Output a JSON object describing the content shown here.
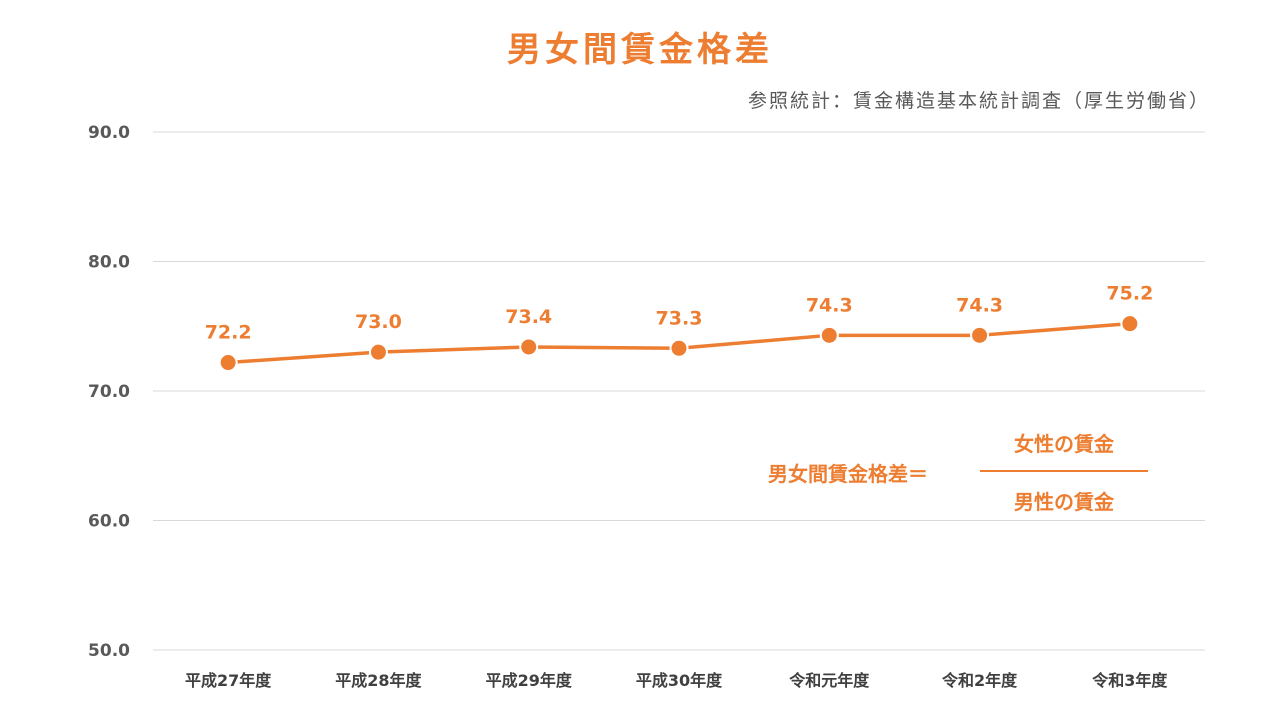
{
  "header": {
    "title": "男女間賃金格差",
    "source": "参照統計：賃金構造基本統計調査（厚生労働省）"
  },
  "formula": {
    "lhs": "男女間賃金格差＝",
    "numerator": "女性の賃金",
    "denominator": "男性の賃金"
  },
  "colors": {
    "accent": "#ED7D31",
    "grid": "#D9D9D9",
    "axis_text": "#595959"
  },
  "chart_data": {
    "type": "line",
    "title": "男女間賃金格差",
    "categories": [
      "平成27年度",
      "平成28年度",
      "平成29年度",
      "平成30年度",
      "令和元年度",
      "令和2年度",
      "令和3年度"
    ],
    "values": [
      72.2,
      73.0,
      73.4,
      73.3,
      74.3,
      74.3,
      75.2
    ],
    "value_labels": [
      "72.2",
      "73.0",
      "73.4",
      "73.3",
      "74.3",
      "74.3",
      "75.2"
    ],
    "yticks": [
      "50.0",
      "60.0",
      "70.0",
      "80.0",
      "90.0"
    ],
    "ylim": [
      50,
      90
    ],
    "xlabel": "",
    "ylabel": "",
    "grid": true,
    "legend": "none"
  }
}
